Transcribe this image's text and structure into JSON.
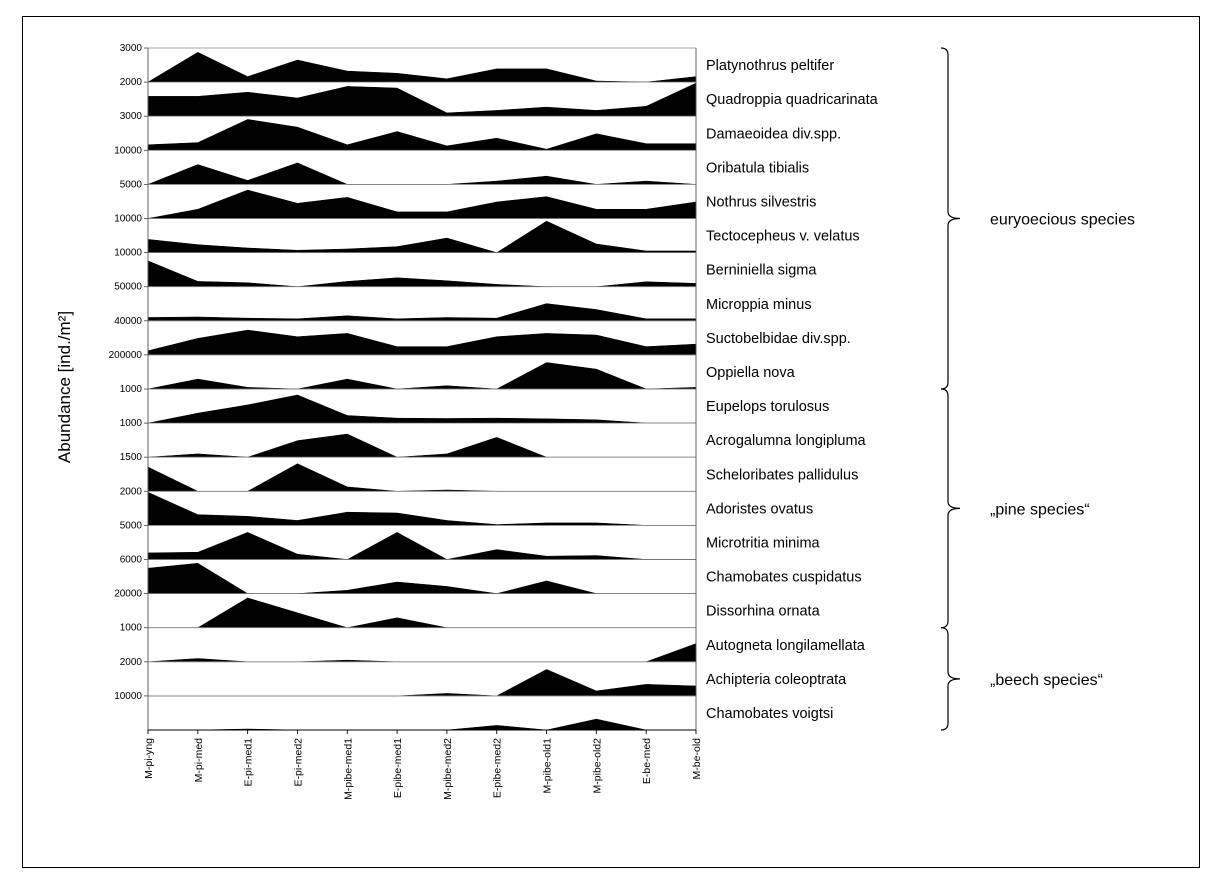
{
  "chart_data": {
    "type": "area",
    "subtype": "stacked-panels (kite/silhouette area plot)",
    "ylabel": "Abundance [ind./m²]",
    "xlabel": "",
    "categories": [
      "M-pi-yng",
      "M-pi-med",
      "E-pi-med1",
      "E-pi-med2",
      "M-pibe-med1",
      "E-pibe-med1",
      "M-pibe-med2",
      "E-pibe-med2",
      "M-pibe-old1",
      "M-pibe-old2",
      "E-be-med",
      "M-be-old"
    ],
    "series": [
      {
        "name": "Platynothrus peltifer",
        "ymax_label": "3000",
        "ymax": 3000,
        "values": [
          0,
          2700,
          500,
          2000,
          1000,
          800,
          300,
          1200,
          1200,
          100,
          0,
          500
        ]
      },
      {
        "name": "Quadroppia quadricarinata",
        "ymax_label": "2000",
        "ymax": 2000,
        "values": [
          1200,
          1200,
          1450,
          1100,
          1800,
          1700,
          200,
          350,
          550,
          350,
          600,
          2000
        ]
      },
      {
        "name": "Damaeoidea div.spp.",
        "ymax_label": "3000",
        "ymax": 3000,
        "values": [
          500,
          700,
          2800,
          2100,
          500,
          1700,
          400,
          1100,
          100,
          1500,
          600,
          600
        ]
      },
      {
        "name": "Oribatula tibialis",
        "ymax_label": "10000",
        "ymax": 10000,
        "values": [
          0,
          6000,
          1200,
          6500,
          0,
          0,
          0,
          1000,
          2500,
          0,
          1000,
          0
        ]
      },
      {
        "name": "Nothrus silvestris",
        "ymax_label": "5000",
        "ymax": 5000,
        "values": [
          0,
          1400,
          4300,
          2300,
          3200,
          1000,
          1000,
          2500,
          3300,
          1400,
          1400,
          2500
        ]
      },
      {
        "name": "Tectocepheus v. velatus",
        "ymax_label": "10000",
        "ymax": 10000,
        "values": [
          4000,
          2400,
          1400,
          700,
          1100,
          1800,
          4400,
          0,
          9500,
          2600,
          500,
          500
        ]
      },
      {
        "name": "Berniniella sigma",
        "ymax_label": "10000",
        "ymax": 10000,
        "values": [
          7800,
          1600,
          1200,
          0,
          1600,
          2700,
          1800,
          700,
          0,
          0,
          1500,
          1000
        ]
      },
      {
        "name": "Microppia minus",
        "ymax_label": "50000",
        "ymax": 50000,
        "values": [
          5000,
          5800,
          4000,
          3000,
          7600,
          3000,
          5000,
          4000,
          26000,
          17000,
          3000,
          3000
        ]
      },
      {
        "name": "Suctobelbidae div.spp.",
        "ymax_label": "40000",
        "ymax": 40000,
        "values": [
          5000,
          20000,
          30000,
          22000,
          26000,
          10000,
          10000,
          22000,
          26000,
          24000,
          10000,
          13000
        ]
      },
      {
        "name": "Oppiella nova",
        "ymax_label": "200000",
        "ymax": 200000,
        "values": [
          0,
          60000,
          10000,
          0,
          60000,
          0,
          20000,
          0,
          160000,
          120000,
          0,
          10000
        ]
      },
      {
        "name": "Eupelops torulosus",
        "ymax_label": "1000",
        "ymax": 1000,
        "values": [
          0,
          300,
          550,
          850,
          230,
          150,
          140,
          150,
          130,
          100,
          0,
          0
        ]
      },
      {
        "name": "Acrogalumna longipluma",
        "ymax_label": "1000",
        "ymax": 1000,
        "values": [
          0,
          100,
          0,
          500,
          700,
          0,
          100,
          600,
          0,
          0,
          0,
          0
        ]
      },
      {
        "name": "Scheloribates pallidulus",
        "ymax_label": "1500",
        "ymax": 1500,
        "values": [
          1100,
          0,
          0,
          1250,
          200,
          0,
          60,
          0,
          0,
          0,
          0,
          0
        ]
      },
      {
        "name": "Adoristes ovatus",
        "ymax_label": "2000",
        "ymax": 2000,
        "values": [
          2000,
          650,
          550,
          300,
          800,
          750,
          300,
          50,
          150,
          150,
          0,
          0
        ]
      },
      {
        "name": "Microtritia minima",
        "ymax_label": "5000",
        "ymax": 5000,
        "values": [
          1000,
          1100,
          4100,
          800,
          0,
          4100,
          0,
          1500,
          500,
          600,
          0,
          0
        ]
      },
      {
        "name": "Chamobates cuspidatus",
        "ymax_label": "6000",
        "ymax": 6000,
        "values": [
          4600,
          5500,
          0,
          0,
          600,
          2100,
          1300,
          0,
          2300,
          0,
          0,
          0
        ]
      },
      {
        "name": "Dissorhina ornata",
        "ymax_label": "20000",
        "ymax": 20000,
        "values": [
          0,
          0,
          18000,
          9000,
          0,
          6000,
          0,
          0,
          0,
          0,
          0,
          0
        ]
      },
      {
        "name": "Autogneta longilamellata",
        "ymax_label": "1000",
        "ymax": 1000,
        "values": [
          0,
          100,
          0,
          0,
          50,
          0,
          0,
          0,
          0,
          0,
          0,
          550
        ]
      },
      {
        "name": "Achipteria coleoptrata",
        "ymax_label": "2000",
        "ymax": 2000,
        "values": [
          0,
          0,
          0,
          0,
          0,
          0,
          150,
          0,
          1600,
          300,
          700,
          600
        ]
      },
      {
        "name": "Chamobates voigtsi",
        "ymax_label": "10000",
        "ymax": 10000,
        "values": [
          0,
          0,
          300,
          0,
          0,
          0,
          0,
          1400,
          0,
          3300,
          0,
          0
        ]
      }
    ],
    "groups": [
      {
        "label": "euryoecious species",
        "first": 0,
        "last": 9
      },
      {
        "label": "„pine species“",
        "first": 10,
        "last": 16
      },
      {
        "label": "„beech species“",
        "first": 17,
        "last": 19
      }
    ],
    "fill_color": "#000000",
    "grid": false
  }
}
